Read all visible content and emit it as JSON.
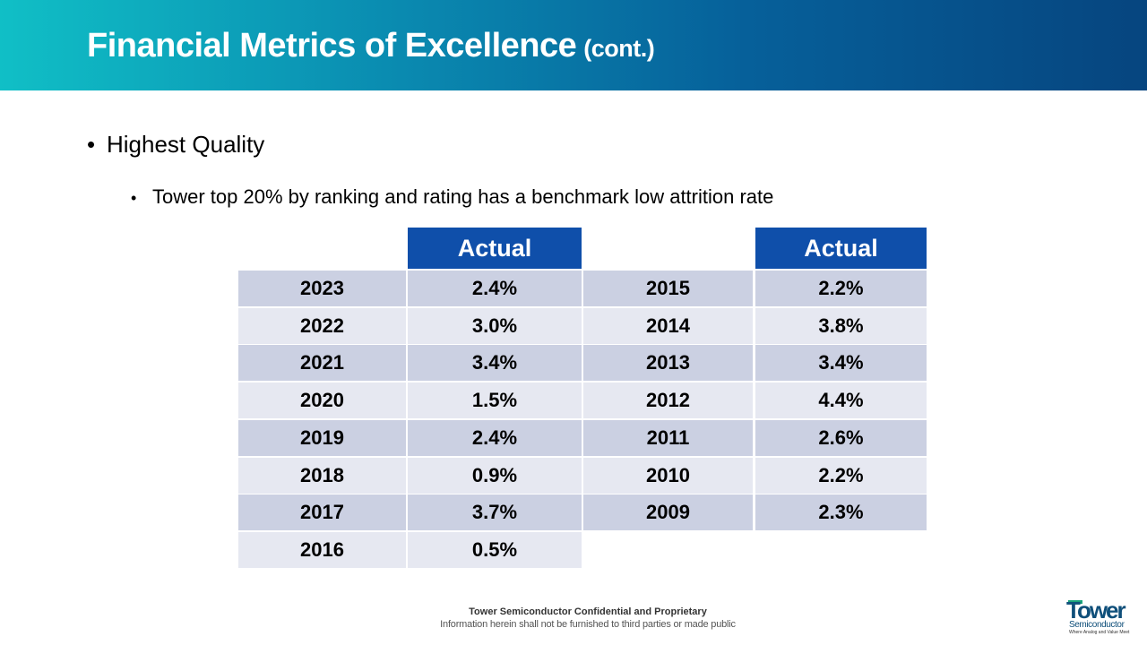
{
  "slide": {
    "title": "Financial Metrics of Excellence",
    "title_suffix": "(cont.)",
    "bullet_main": "Highest Quality",
    "bullet_sub": "Tower top 20% by ranking and rating has a benchmark low attrition rate"
  },
  "table": {
    "header_label": "Actual",
    "left": [
      {
        "year": "2023",
        "value": "2.4%"
      },
      {
        "year": "2022",
        "value": "3.0%"
      },
      {
        "year": "2021",
        "value": "3.4%"
      },
      {
        "year": "2020",
        "value": "1.5%"
      },
      {
        "year": "2019",
        "value": "2.4%"
      },
      {
        "year": "2018",
        "value": "0.9%"
      },
      {
        "year": "2017",
        "value": "3.7%"
      },
      {
        "year": "2016",
        "value": "0.5%"
      }
    ],
    "right": [
      {
        "year": "2015",
        "value": "2.2%"
      },
      {
        "year": "2014",
        "value": "3.8%"
      },
      {
        "year": "2013",
        "value": "3.4%"
      },
      {
        "year": "2012",
        "value": "4.4%"
      },
      {
        "year": "2011",
        "value": "2.6%"
      },
      {
        "year": "2010",
        "value": "2.2%"
      },
      {
        "year": "2009",
        "value": "2.3%"
      }
    ]
  },
  "footer": {
    "line1": "Tower Semiconductor Confidential and Proprietary",
    "line2": "Information herein shall not be furnished to third parties or made public"
  },
  "logo": {
    "name": "Tower",
    "sub": "Semiconductor",
    "tag": "Where Analog and Value Meet"
  },
  "colors": {
    "header_gradient_start": "#10bfc6",
    "header_gradient_end": "#06457f",
    "table_header": "#0f4faa",
    "row_dark": "#cbd0e2",
    "row_light": "#e6e8f1"
  }
}
